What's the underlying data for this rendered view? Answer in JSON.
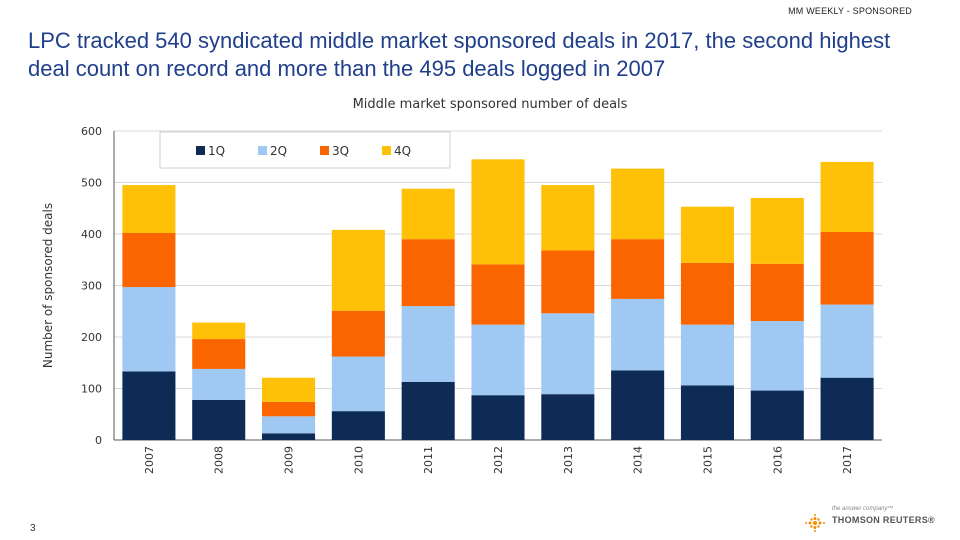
{
  "header": {
    "tag": "MM WEEKLY - SPONSORED"
  },
  "slide": {
    "title": "LPC tracked 540 syndicated middle market sponsored deals in 2017, the second highest deal count on record and more than the 495 deals logged in 2007",
    "page_number": "3"
  },
  "footer": {
    "logo_tagline": "the answer company™",
    "logo_name": "THOMSON REUTERS®",
    "logo_icon": "reuters-dot-icon"
  },
  "colors": {
    "q1": "#0d2b55",
    "q2": "#9fc9f3",
    "q3": "#fa6500",
    "q4": "#fec107",
    "grid": "#d9d9d9",
    "axis": "#595959"
  },
  "chart_data": {
    "type": "bar",
    "stacked": true,
    "title": "Middle market sponsored number of deals",
    "xlabel": "",
    "ylabel": "Number of sponsored deals",
    "ylim": [
      0,
      600
    ],
    "yticks": [
      0,
      100,
      200,
      300,
      400,
      500,
      600
    ],
    "grid": true,
    "legend_position": "top-left",
    "categories": [
      "2007",
      "2008",
      "2009",
      "2010",
      "2011",
      "2012",
      "2013",
      "2014",
      "2015",
      "2016",
      "2017"
    ],
    "series": [
      {
        "name": "1Q",
        "values": [
          133,
          78,
          13,
          56,
          113,
          87,
          89,
          135,
          106,
          96,
          121
        ]
      },
      {
        "name": "2Q",
        "values": [
          164,
          60,
          33,
          106,
          147,
          137,
          157,
          139,
          118,
          135,
          142
        ]
      },
      {
        "name": "3Q",
        "values": [
          105,
          58,
          28,
          89,
          130,
          117,
          122,
          116,
          120,
          111,
          141
        ]
      },
      {
        "name": "4Q",
        "values": [
          93,
          32,
          47,
          157,
          98,
          204,
          127,
          137,
          109,
          128,
          136
        ]
      }
    ]
  }
}
